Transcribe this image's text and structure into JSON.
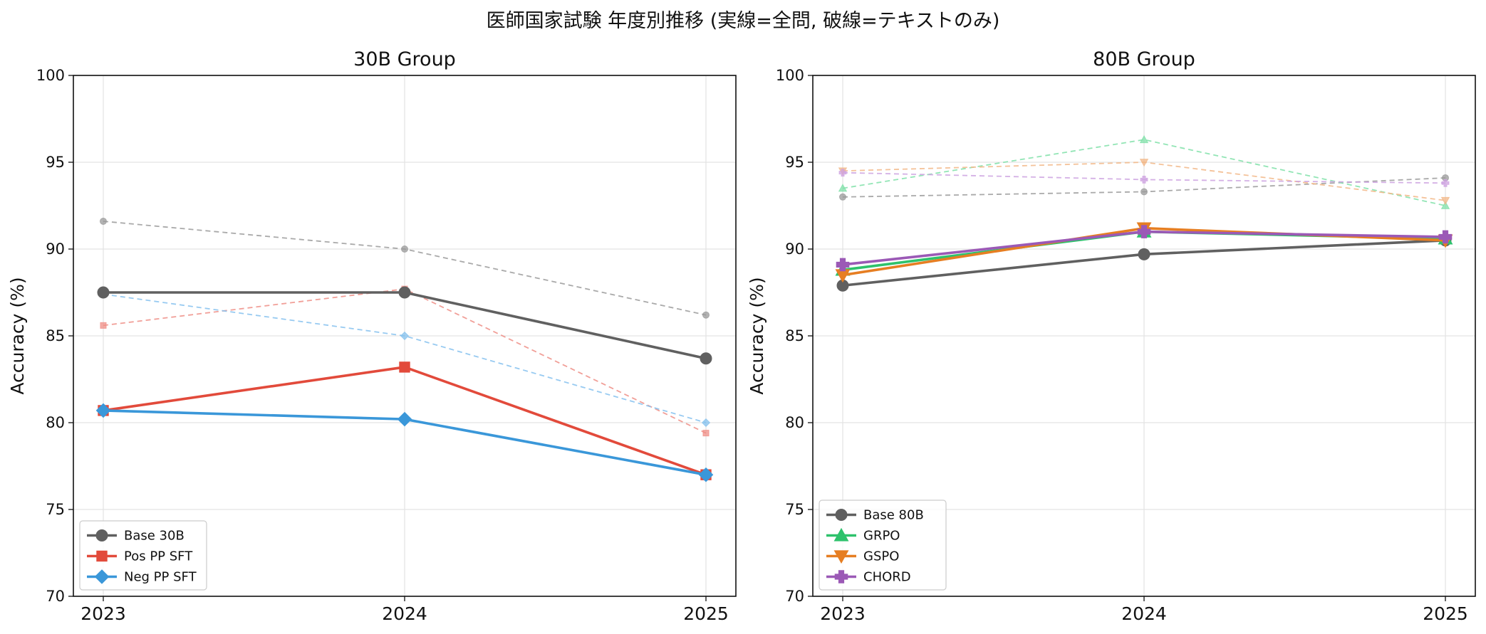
{
  "figure": {
    "title": "医師国家試験 年度別推移 (実線=全問, 破線=テキストのみ)"
  },
  "chart_data": [
    {
      "type": "line",
      "title": "30B Group",
      "xlabel": "",
      "ylabel": "Accuracy (%)",
      "categories": [
        "2023",
        "2024",
        "2025"
      ],
      "ylim": [
        70,
        100
      ],
      "yticks": [
        "70",
        "75",
        "80",
        "85",
        "90",
        "95",
        "100"
      ],
      "grid": true,
      "legend_position": "lower-left",
      "series": [
        {
          "name": "Base 30B",
          "color": "#606060",
          "marker": "circle",
          "style": "solid",
          "values": [
            87.5,
            87.5,
            83.7
          ]
        },
        {
          "name": "Pos PP SFT",
          "color": "#e24a3b",
          "marker": "square",
          "style": "solid",
          "values": [
            80.7,
            83.2,
            77.0
          ]
        },
        {
          "name": "Neg PP SFT",
          "color": "#3a97d9",
          "marker": "diamond",
          "style": "solid",
          "values": [
            80.7,
            80.2,
            77.0
          ]
        },
        {
          "color": "#9a9a9a",
          "marker": "circle",
          "style": "dashed",
          "values": [
            91.6,
            90.0,
            86.2
          ]
        },
        {
          "color": "#ef8e86",
          "marker": "square",
          "style": "dashed",
          "values": [
            85.6,
            87.7,
            79.4
          ]
        },
        {
          "color": "#85c1ee",
          "marker": "diamond",
          "style": "dashed",
          "values": [
            87.4,
            85.0,
            80.0
          ]
        }
      ]
    },
    {
      "type": "line",
      "title": "80B Group",
      "xlabel": "",
      "ylabel": "Accuracy (%)",
      "categories": [
        "2023",
        "2024",
        "2025"
      ],
      "ylim": [
        70,
        100
      ],
      "yticks": [
        "70",
        "75",
        "80",
        "85",
        "90",
        "95",
        "100"
      ],
      "grid": true,
      "legend_position": "lower-left",
      "series": [
        {
          "name": "Base 80B",
          "color": "#606060",
          "marker": "circle",
          "style": "solid",
          "values": [
            87.9,
            89.7,
            90.5
          ]
        },
        {
          "name": "GRPO",
          "color": "#2ec26c",
          "marker": "triangle-up",
          "style": "solid",
          "values": [
            88.8,
            91.0,
            90.6
          ]
        },
        {
          "name": "GSPO",
          "color": "#e67e22",
          "marker": "triangle-down",
          "style": "solid",
          "values": [
            88.5,
            91.2,
            90.5
          ]
        },
        {
          "name": "CHORD",
          "color": "#9b59b6",
          "marker": "plus",
          "style": "solid",
          "values": [
            89.1,
            91.0,
            90.7
          ]
        },
        {
          "color": "#9a9a9a",
          "marker": "circle",
          "style": "dashed",
          "values": [
            93.0,
            93.3,
            94.1
          ]
        },
        {
          "color": "#7fe0a8",
          "marker": "triangle-up",
          "style": "dashed",
          "values": [
            93.5,
            96.3,
            92.5
          ]
        },
        {
          "color": "#f2b787",
          "marker": "triangle-down",
          "style": "dashed",
          "values": [
            94.5,
            95.0,
            92.8
          ]
        },
        {
          "color": "#cda2e0",
          "marker": "plus",
          "style": "dashed",
          "values": [
            94.4,
            94.0,
            93.8
          ]
        }
      ]
    }
  ]
}
